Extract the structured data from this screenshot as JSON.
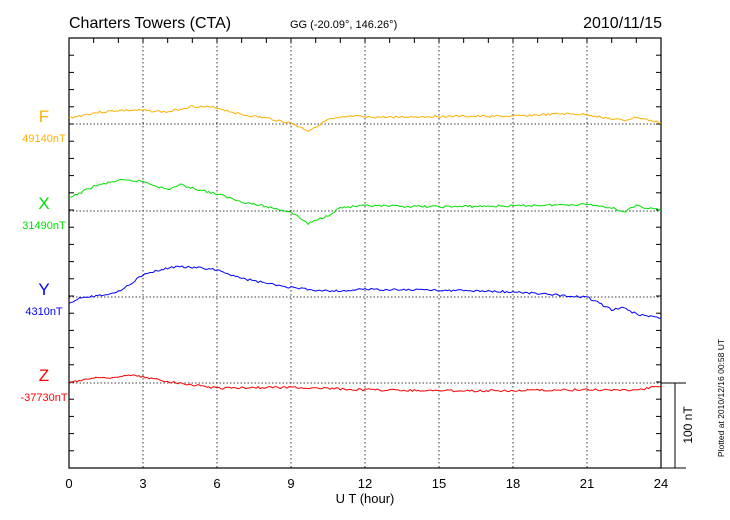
{
  "chart_data": {
    "type": "line",
    "title": "Charters Towers (CTA)",
    "subtitle": "GG (-20.09°, 146.26°)",
    "date": "2010/11/15",
    "xlabel": "U T (hour)",
    "xlim": [
      0,
      24
    ],
    "xticks": [
      "0",
      "3",
      "6",
      "9",
      "12",
      "15",
      "18",
      "21",
      "24"
    ],
    "scale_label": "100 nT",
    "plotted_note": "Plotted at 2010/12/16 00:58 UT",
    "grid": true,
    "series": [
      {
        "name": "F",
        "baseline_label": "49140nT",
        "color": "#ffb000",
        "x": [
          0,
          1,
          2,
          3,
          4,
          5,
          6,
          7,
          8,
          9,
          9.7,
          10.5,
          11.5,
          12,
          13,
          15,
          18,
          20,
          21,
          22,
          22.5,
          23,
          24
        ],
        "values": [
          7,
          13,
          16,
          16,
          14,
          21,
          19,
          11,
          7,
          1,
          -8,
          5,
          9,
          8,
          8,
          9,
          9,
          12,
          11,
          6,
          4,
          8,
          1
        ]
      },
      {
        "name": "X",
        "baseline_label": "31490nT",
        "color": "#00e000",
        "x": [
          0,
          1,
          2,
          3,
          4,
          4.5,
          5,
          6,
          7,
          8,
          9,
          9.7,
          10.5,
          11,
          12,
          15,
          18,
          21,
          22,
          22.5,
          23,
          24
        ],
        "values": [
          15,
          29,
          36,
          35,
          25,
          31,
          27,
          20,
          11,
          5,
          -1,
          -15,
          -5,
          4,
          6,
          5,
          6,
          8,
          4,
          -1,
          6,
          1
        ]
      },
      {
        "name": "Y",
        "baseline_label": "4310nT",
        "color": "#0000ff",
        "x": [
          0,
          0.5,
          1,
          2,
          3,
          4,
          4.5,
          5,
          6,
          7,
          8,
          9,
          10,
          11,
          12,
          15,
          18,
          20,
          21,
          22,
          22.5,
          23,
          24
        ],
        "values": [
          -7,
          0,
          1,
          6,
          26,
          34,
          36,
          35,
          32,
          22,
          16,
          11,
          8,
          7,
          9,
          8,
          6,
          2,
          0,
          -15,
          -13,
          -20,
          -25
        ]
      },
      {
        "name": "Z",
        "baseline_label": "-37730nT",
        "color": "#ff0000",
        "x": [
          0,
          1,
          2,
          2.5,
          3,
          4,
          5,
          6,
          9,
          12,
          15,
          18,
          21,
          23,
          24
        ],
        "values": [
          1,
          6,
          7,
          9,
          7,
          2,
          -2,
          -6,
          -5,
          -8,
          -9,
          -9,
          -8,
          -8,
          -4
        ]
      }
    ]
  }
}
